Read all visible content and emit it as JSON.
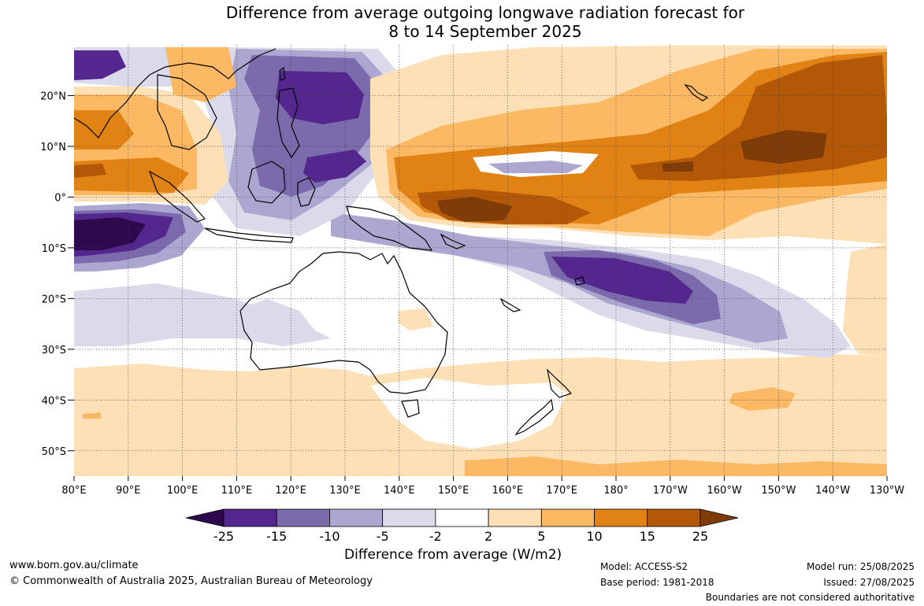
{
  "title": {
    "line1": "Difference from average outgoing longwave radiation forecast for",
    "line2": "8 to 14 September 2025"
  },
  "map": {
    "lat_labels": [
      "20°N",
      "10°N",
      "0°",
      "10°S",
      "20°S",
      "30°S",
      "40°S",
      "50°S"
    ],
    "lon_labels": [
      "80°E",
      "90°E",
      "100°E",
      "110°E",
      "120°E",
      "130°E",
      "140°E",
      "150°E",
      "160°E",
      "170°E",
      "180°",
      "170°W",
      "160°W",
      "150°W",
      "140°W",
      "130°W"
    ],
    "lon_range": [
      "80°E",
      "130°W"
    ],
    "lat_range": [
      "30°N",
      "55°S"
    ]
  },
  "colorbar": {
    "title": "Difference from average (W/m2)",
    "labels": [
      "-25",
      "-15",
      "-10",
      "-5",
      "-2",
      "2",
      "5",
      "10",
      "15",
      "25"
    ],
    "colors": [
      "#2d0a4e",
      "#54278f",
      "#7b6aac",
      "#aca7d0",
      "#dadaeb",
      "#ffffff",
      "#fee0b6",
      "#fdb863",
      "#e08214",
      "#b35806",
      "#7f3b08"
    ]
  },
  "footer": {
    "url": "www.bom.gov.au/climate",
    "copyright": "© Commonwealth of Australia 2025, Australian Bureau of Meteorology",
    "model": "Model: ACCESS-S2",
    "base_period": "Base period: 1981-2018",
    "model_run": "Model run: 25/08/2025",
    "issued": "Issued: 27/08/2025",
    "disclaimer": "Boundaries are not considered authoritative"
  }
}
